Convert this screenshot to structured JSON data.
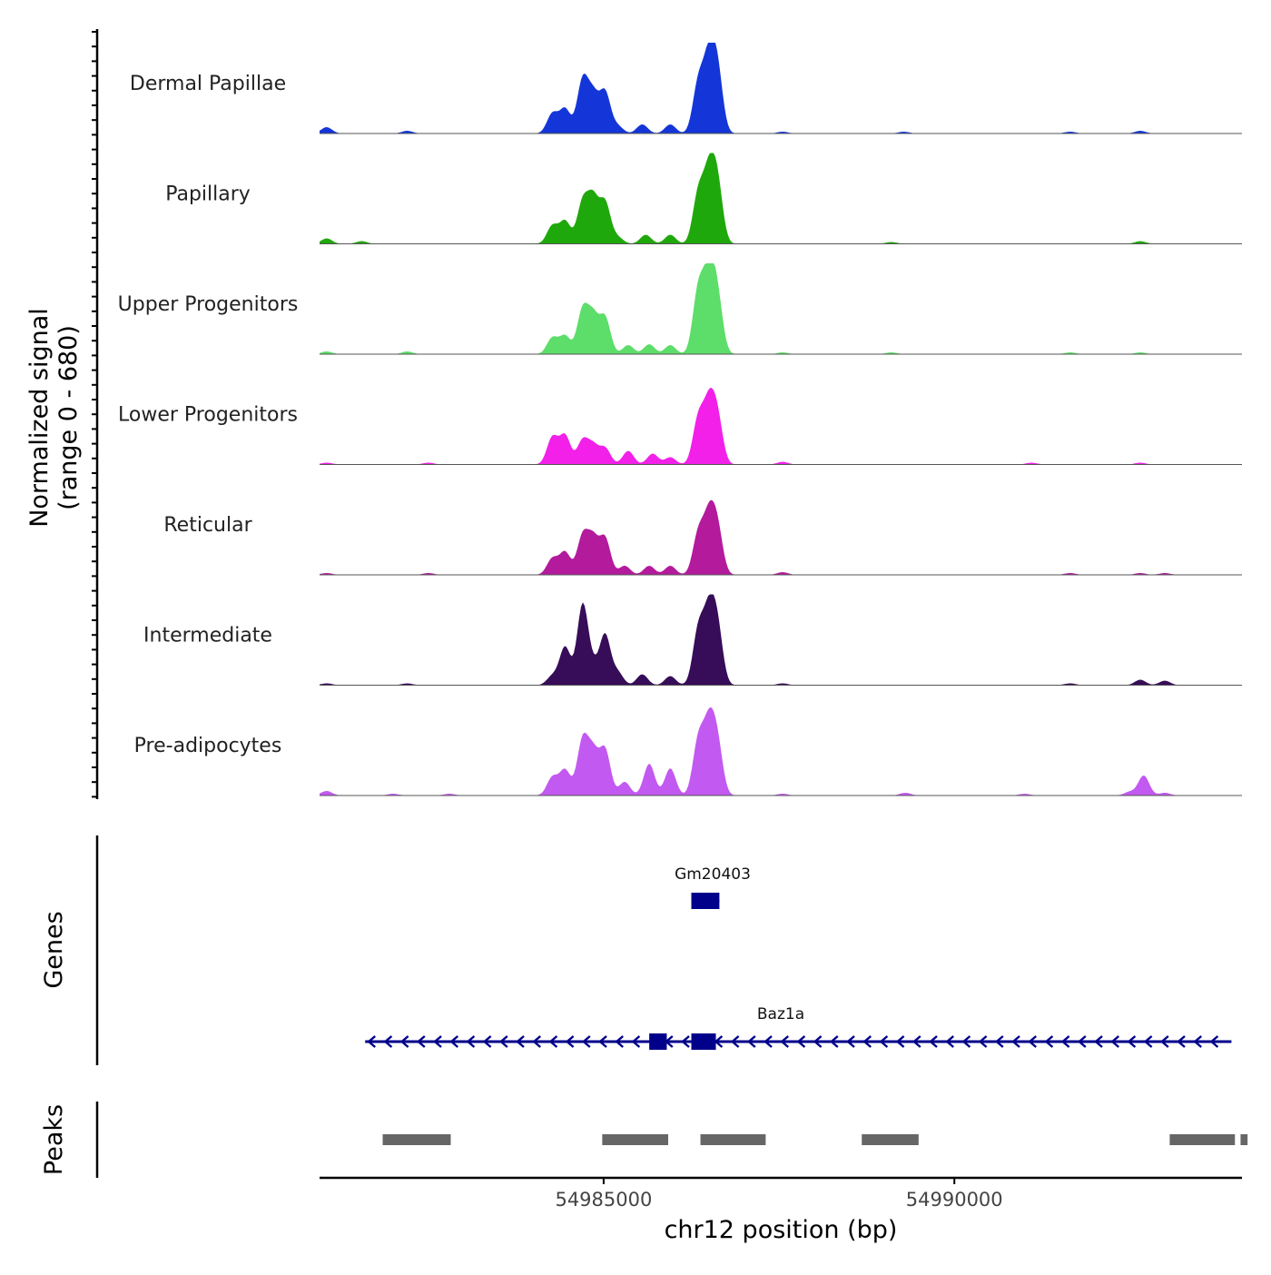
{
  "chart_data": {
    "type": "area",
    "title": "",
    "coverage_ylabel": [
      "Normalized signal",
      "(range 0 - 680)"
    ],
    "ylim": [
      0,
      680
    ],
    "xlabel": "chr12 position (bp)",
    "xlim": [
      54980950,
      54994100
    ],
    "xticks": [
      54985000,
      54990000
    ],
    "xtick_labels": [
      "54985000",
      "54990000"
    ],
    "tracks": [
      {
        "name": "Dermal Papillae",
        "color": "#1436d8",
        "peaks": [
          [
            54981050,
            0.07
          ],
          [
            54982200,
            0.03
          ],
          [
            54984270,
            0.22
          ],
          [
            54984450,
            0.27
          ],
          [
            54984700,
            0.58
          ],
          [
            54984850,
            0.4
          ],
          [
            54985020,
            0.45
          ],
          [
            54985200,
            0.08
          ],
          [
            54985550,
            0.1
          ],
          [
            54985950,
            0.1
          ],
          [
            54986350,
            0.55
          ],
          [
            54986500,
            0.75
          ],
          [
            54986620,
            0.68
          ],
          [
            54987550,
            0.02
          ],
          [
            54989280,
            0.02
          ],
          [
            54991650,
            0.02
          ],
          [
            54992650,
            0.03
          ]
        ]
      },
      {
        "name": "Papillary",
        "color": "#1fa80b",
        "peaks": [
          [
            54981050,
            0.06
          ],
          [
            54981550,
            0.03
          ],
          [
            54984270,
            0.2
          ],
          [
            54984450,
            0.25
          ],
          [
            54984700,
            0.45
          ],
          [
            54984850,
            0.48
          ],
          [
            54985020,
            0.45
          ],
          [
            54985200,
            0.07
          ],
          [
            54985600,
            0.1
          ],
          [
            54985950,
            0.1
          ],
          [
            54986350,
            0.55
          ],
          [
            54986500,
            0.7
          ],
          [
            54986620,
            0.65
          ],
          [
            54989100,
            0.02
          ],
          [
            54992650,
            0.03
          ]
        ]
      },
      {
        "name": "Upper Progenitors",
        "color": "#5ddd69",
        "peaks": [
          [
            54981050,
            0.03
          ],
          [
            54982200,
            0.03
          ],
          [
            54984270,
            0.18
          ],
          [
            54984450,
            0.2
          ],
          [
            54984700,
            0.48
          ],
          [
            54984850,
            0.4
          ],
          [
            54985020,
            0.4
          ],
          [
            54985350,
            0.1
          ],
          [
            54985650,
            0.11
          ],
          [
            54985950,
            0.1
          ],
          [
            54986350,
            0.7
          ],
          [
            54986500,
            0.8
          ],
          [
            54986620,
            0.6
          ],
          [
            54987550,
            0.02
          ],
          [
            54989100,
            0.02
          ],
          [
            54991650,
            0.02
          ],
          [
            54992650,
            0.02
          ]
        ]
      },
      {
        "name": "Lower Progenitors",
        "color": "#f220e8",
        "peaks": [
          [
            54981050,
            0.02
          ],
          [
            54982500,
            0.02
          ],
          [
            54984270,
            0.3
          ],
          [
            54984450,
            0.32
          ],
          [
            54984700,
            0.26
          ],
          [
            54984850,
            0.2
          ],
          [
            54985020,
            0.18
          ],
          [
            54985350,
            0.15
          ],
          [
            54985700,
            0.12
          ],
          [
            54985950,
            0.08
          ],
          [
            54986350,
            0.5
          ],
          [
            54986500,
            0.6
          ],
          [
            54986620,
            0.5
          ],
          [
            54987550,
            0.03
          ],
          [
            54991100,
            0.02
          ],
          [
            54992650,
            0.02
          ]
        ]
      },
      {
        "name": "Reticular",
        "color": "#b31a9c",
        "peaks": [
          [
            54981050,
            0.02
          ],
          [
            54982500,
            0.02
          ],
          [
            54984270,
            0.18
          ],
          [
            54984450,
            0.25
          ],
          [
            54984700,
            0.42
          ],
          [
            54984850,
            0.38
          ],
          [
            54985020,
            0.4
          ],
          [
            54985300,
            0.1
          ],
          [
            54985650,
            0.1
          ],
          [
            54985950,
            0.1
          ],
          [
            54986350,
            0.45
          ],
          [
            54986500,
            0.58
          ],
          [
            54986620,
            0.5
          ],
          [
            54987550,
            0.03
          ],
          [
            54991650,
            0.02
          ],
          [
            54992650,
            0.02
          ],
          [
            54993000,
            0.02
          ]
        ]
      },
      {
        "name": "Intermediate",
        "color": "#370c58",
        "peaks": [
          [
            54981050,
            0.02
          ],
          [
            54982200,
            0.02
          ],
          [
            54984270,
            0.1
          ],
          [
            54984450,
            0.42
          ],
          [
            54984700,
            0.88
          ],
          [
            54984850,
            0.18
          ],
          [
            54985020,
            0.55
          ],
          [
            54985200,
            0.14
          ],
          [
            54985550,
            0.12
          ],
          [
            54985950,
            0.1
          ],
          [
            54986350,
            0.6
          ],
          [
            54986500,
            0.72
          ],
          [
            54986620,
            0.62
          ],
          [
            54987550,
            0.02
          ],
          [
            54991650,
            0.02
          ],
          [
            54992650,
            0.06
          ],
          [
            54993000,
            0.05
          ]
        ]
      },
      {
        "name": "Pre-adipocytes",
        "color": "#c259f0",
        "peaks": [
          [
            54981050,
            0.05
          ],
          [
            54982000,
            0.02
          ],
          [
            54982800,
            0.02
          ],
          [
            54984270,
            0.2
          ],
          [
            54984450,
            0.28
          ],
          [
            54984700,
            0.6
          ],
          [
            54984850,
            0.45
          ],
          [
            54985020,
            0.5
          ],
          [
            54985300,
            0.15
          ],
          [
            54985650,
            0.35
          ],
          [
            54985950,
            0.3
          ],
          [
            54986350,
            0.6
          ],
          [
            54986500,
            0.7
          ],
          [
            54986620,
            0.55
          ],
          [
            54987550,
            0.02
          ],
          [
            54989300,
            0.03
          ],
          [
            54991000,
            0.02
          ],
          [
            54992500,
            0.04
          ],
          [
            54992700,
            0.22
          ],
          [
            54993000,
            0.03
          ]
        ]
      }
    ],
    "genes": [
      {
        "name": "Gm20403",
        "strand": "",
        "color": "#00008b",
        "start": 54986250,
        "end": 54986650,
        "exons": [
          [
            54986250,
            54986650
          ]
        ]
      },
      {
        "name": "Baz1a",
        "strand": "-",
        "color": "#00008b",
        "start": 54981600,
        "end": 54993950,
        "exons": [
          [
            54985650,
            54985900
          ],
          [
            54986250,
            54986600
          ]
        ]
      }
    ],
    "genes_label": "Genes",
    "peaks_label": "Peaks",
    "peak_regions": [
      [
        54981850,
        54982820
      ],
      [
        54984980,
        54985920
      ],
      [
        54986380,
        54987310
      ],
      [
        54988680,
        54989490
      ],
      [
        54993070,
        54994000
      ],
      [
        54994080,
        54994180
      ]
    ],
    "peak_color": "#666666"
  }
}
